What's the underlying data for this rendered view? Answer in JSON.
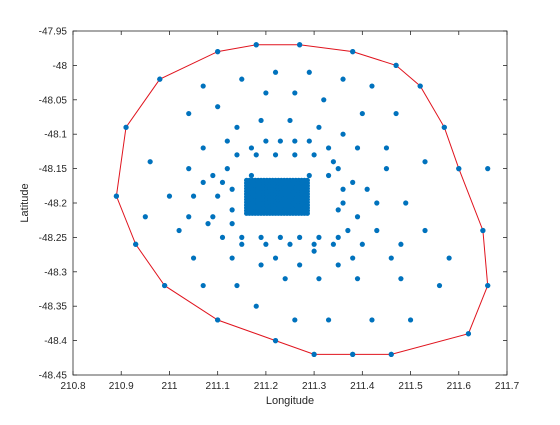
{
  "chart_data": {
    "type": "scatter",
    "xlabel": "Longitude",
    "ylabel": "Latitude",
    "xlim": [
      210.8,
      211.7
    ],
    "ylim": [
      -48.45,
      -47.95
    ],
    "xticks": [
      "210.8",
      "210.9",
      "211",
      "211.1",
      "211.2",
      "211.3",
      "211.4",
      "211.5",
      "211.6",
      "211.7"
    ],
    "yticks": [
      "-47.95",
      "-48",
      "-48.05",
      "-48.1",
      "-48.15",
      "-48.2",
      "-48.25",
      "-48.3",
      "-48.35",
      "-48.4",
      "-48.45"
    ],
    "grid": false,
    "legend": "none",
    "colors": {
      "points": "#0072BD",
      "hull": "#E0141E",
      "axes": "#262626"
    },
    "series": [
      {
        "type": "scatter",
        "points": [
          [
            211.18,
            -47.97
          ],
          [
            211.27,
            -47.97
          ],
          [
            211.1,
            -47.98
          ],
          [
            211.38,
            -47.98
          ],
          [
            210.98,
            -48.02
          ],
          [
            211.47,
            -48.0
          ],
          [
            211.52,
            -48.03
          ],
          [
            211.07,
            -48.03
          ],
          [
            211.15,
            -48.02
          ],
          [
            211.22,
            -48.01
          ],
          [
            211.29,
            -48.01
          ],
          [
            211.36,
            -48.02
          ],
          [
            211.42,
            -48.03
          ],
          [
            211.2,
            -48.04
          ],
          [
            211.26,
            -48.04
          ],
          [
            211.32,
            -48.05
          ],
          [
            211.1,
            -48.06
          ],
          [
            211.4,
            -48.07
          ],
          [
            211.04,
            -48.07
          ],
          [
            211.47,
            -48.07
          ],
          [
            211.19,
            -48.08
          ],
          [
            211.25,
            -48.08
          ],
          [
            211.31,
            -48.09
          ],
          [
            211.14,
            -48.09
          ],
          [
            211.36,
            -48.1
          ],
          [
            210.91,
            -48.09
          ],
          [
            211.57,
            -48.09
          ],
          [
            211.2,
            -48.11
          ],
          [
            211.23,
            -48.11
          ],
          [
            211.26,
            -48.11
          ],
          [
            211.29,
            -48.11
          ],
          [
            211.12,
            -48.11
          ],
          [
            211.17,
            -48.12
          ],
          [
            211.33,
            -48.12
          ],
          [
            211.39,
            -48.12
          ],
          [
            211.07,
            -48.12
          ],
          [
            211.45,
            -48.12
          ],
          [
            211.14,
            -48.13
          ],
          [
            211.18,
            -48.13
          ],
          [
            211.22,
            -48.13
          ],
          [
            211.26,
            -48.13
          ],
          [
            211.3,
            -48.13
          ],
          [
            211.34,
            -48.14
          ],
          [
            210.96,
            -48.14
          ],
          [
            211.04,
            -48.15
          ],
          [
            211.12,
            -48.15
          ],
          [
            211.35,
            -48.15
          ],
          [
            211.45,
            -48.15
          ],
          [
            211.53,
            -48.14
          ],
          [
            211.6,
            -48.15
          ],
          [
            211.09,
            -48.16
          ],
          [
            211.17,
            -48.16
          ],
          [
            211.29,
            -48.16
          ],
          [
            211.33,
            -48.16
          ],
          [
            211.38,
            -48.17
          ],
          [
            211.07,
            -48.17
          ],
          [
            211.11,
            -48.17
          ],
          [
            211.13,
            -48.18
          ],
          [
            211.36,
            -48.18
          ],
          [
            211.41,
            -48.18
          ],
          [
            211.0,
            -48.19
          ],
          [
            211.05,
            -48.19
          ],
          [
            211.1,
            -48.19
          ],
          [
            211.36,
            -48.2
          ],
          [
            211.43,
            -48.2
          ],
          [
            211.49,
            -48.2
          ],
          [
            210.89,
            -48.19
          ],
          [
            211.66,
            -48.15
          ],
          [
            211.04,
            -48.22
          ],
          [
            211.09,
            -48.22
          ],
          [
            211.13,
            -48.21
          ],
          [
            211.35,
            -48.21
          ],
          [
            211.39,
            -48.22
          ],
          [
            210.95,
            -48.22
          ],
          [
            211.02,
            -48.24
          ],
          [
            211.08,
            -48.23
          ],
          [
            211.13,
            -48.23
          ],
          [
            211.37,
            -48.24
          ],
          [
            211.43,
            -48.24
          ],
          [
            211.53,
            -48.24
          ],
          [
            211.65,
            -48.24
          ],
          [
            211.11,
            -48.25
          ],
          [
            211.15,
            -48.25
          ],
          [
            211.19,
            -48.25
          ],
          [
            211.23,
            -48.25
          ],
          [
            211.27,
            -48.25
          ],
          [
            211.31,
            -48.25
          ],
          [
            211.35,
            -48.25
          ],
          [
            211.15,
            -48.26
          ],
          [
            211.2,
            -48.26
          ],
          [
            211.25,
            -48.26
          ],
          [
            211.3,
            -48.26
          ],
          [
            211.34,
            -48.26
          ],
          [
            211.4,
            -48.26
          ],
          [
            210.93,
            -48.26
          ],
          [
            211.48,
            -48.26
          ],
          [
            211.05,
            -48.28
          ],
          [
            211.13,
            -48.28
          ],
          [
            211.22,
            -48.28
          ],
          [
            211.3,
            -48.27
          ],
          [
            211.38,
            -48.28
          ],
          [
            211.46,
            -48.28
          ],
          [
            211.58,
            -48.28
          ],
          [
            211.19,
            -48.29
          ],
          [
            211.27,
            -48.29
          ],
          [
            211.35,
            -48.29
          ],
          [
            210.99,
            -48.32
          ],
          [
            211.07,
            -48.32
          ],
          [
            211.14,
            -48.32
          ],
          [
            211.24,
            -48.31
          ],
          [
            211.31,
            -48.31
          ],
          [
            211.39,
            -48.31
          ],
          [
            211.48,
            -48.31
          ],
          [
            211.56,
            -48.32
          ],
          [
            211.66,
            -48.32
          ],
          [
            211.18,
            -48.35
          ],
          [
            211.1,
            -48.37
          ],
          [
            211.26,
            -48.37
          ],
          [
            211.33,
            -48.37
          ],
          [
            211.42,
            -48.37
          ],
          [
            211.5,
            -48.37
          ],
          [
            211.62,
            -48.39
          ],
          [
            211.22,
            -48.4
          ],
          [
            211.3,
            -48.42
          ],
          [
            211.38,
            -48.42
          ],
          [
            211.46,
            -48.42
          ]
        ],
        "dense_cluster": {
          "x_range": [
            211.16,
            211.29
          ],
          "y_range": [
            -48.215,
            -48.165
          ]
        }
      },
      {
        "type": "line",
        "closed": true,
        "points": [
          [
            211.18,
            -47.97
          ],
          [
            211.27,
            -47.97
          ],
          [
            211.38,
            -47.98
          ],
          [
            211.47,
            -48.0
          ],
          [
            211.52,
            -48.03
          ],
          [
            211.57,
            -48.09
          ],
          [
            211.6,
            -48.15
          ],
          [
            211.65,
            -48.24
          ],
          [
            211.66,
            -48.32
          ],
          [
            211.62,
            -48.39
          ],
          [
            211.46,
            -48.42
          ],
          [
            211.38,
            -48.42
          ],
          [
            211.3,
            -48.42
          ],
          [
            211.22,
            -48.4
          ],
          [
            211.1,
            -48.37
          ],
          [
            210.99,
            -48.32
          ],
          [
            210.93,
            -48.26
          ],
          [
            210.89,
            -48.19
          ],
          [
            210.91,
            -48.09
          ],
          [
            210.98,
            -48.02
          ],
          [
            211.1,
            -47.98
          ]
        ]
      }
    ]
  }
}
